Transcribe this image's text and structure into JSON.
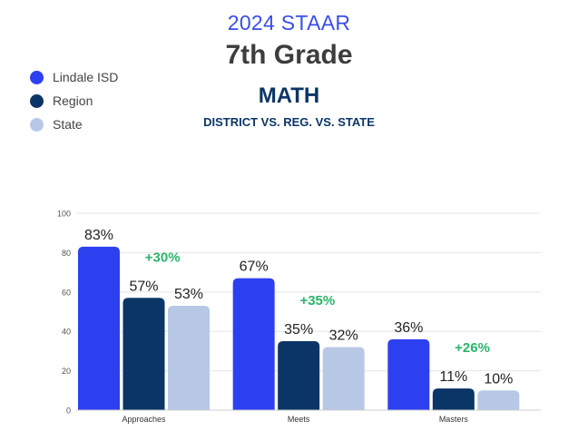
{
  "header": {
    "line1": "2024 STAAR",
    "line2": "7th Grade",
    "line3": "MATH",
    "line4": "DISTRICT VS. REG. VS. STATE"
  },
  "chart_data": {
    "type": "bar",
    "categories": [
      "Approaches",
      "Meets",
      "Masters"
    ],
    "series": [
      {
        "name": "Lindale ISD",
        "color": "#2d40f0",
        "values": [
          83,
          67,
          36
        ],
        "labels": [
          "83%",
          "67%",
          "36%"
        ]
      },
      {
        "name": "Region",
        "color": "#0b3566",
        "values": [
          57,
          35,
          11
        ],
        "labels": [
          "57%",
          "35%",
          "11%"
        ]
      },
      {
        "name": "State",
        "color": "#b7c8e6",
        "values": [
          53,
          32,
          10
        ],
        "labels": [
          "53%",
          "32%",
          "10%"
        ]
      }
    ],
    "annotations": [
      {
        "category": "Approaches",
        "text": "+30%"
      },
      {
        "category": "Meets",
        "text": "+35%"
      },
      {
        "category": "Masters",
        "text": "+26%"
      }
    ],
    "annotation_color": "#2bb56a",
    "y_ticks": [
      "0",
      "20",
      "40",
      "60",
      "80",
      "100"
    ],
    "ylim": [
      0,
      100
    ],
    "grid": true,
    "legend_position": "top-left"
  }
}
